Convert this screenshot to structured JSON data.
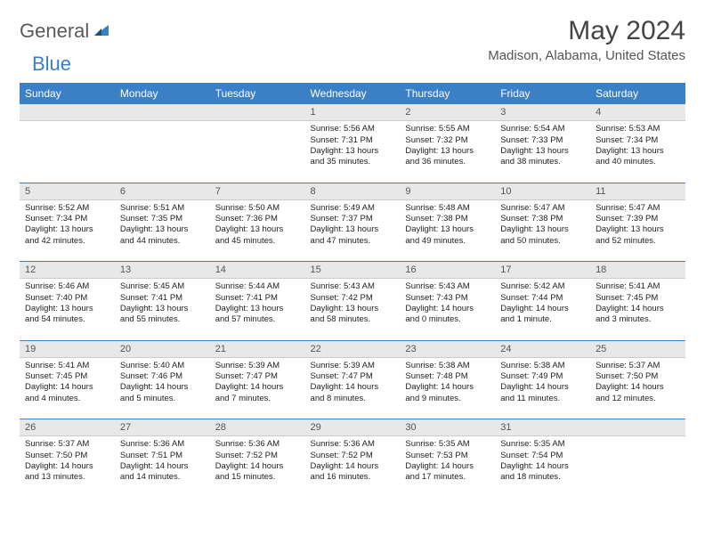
{
  "logo": {
    "general": "General",
    "blue": "Blue"
  },
  "title": "May 2024",
  "location": "Madison, Alabama, United States",
  "colors": {
    "header_bg": "#3b7fc4",
    "header_text": "#ffffff",
    "daynum_bg": "#e8e8e8",
    "body_bg": "#ffffff",
    "text": "#222222",
    "sep": "#3b7fc4"
  },
  "day_names": [
    "Sunday",
    "Monday",
    "Tuesday",
    "Wednesday",
    "Thursday",
    "Friday",
    "Saturday"
  ],
  "weeks": [
    [
      {
        "n": "",
        "sunrise": "",
        "sunset": "",
        "daylight": ""
      },
      {
        "n": "",
        "sunrise": "",
        "sunset": "",
        "daylight": ""
      },
      {
        "n": "",
        "sunrise": "",
        "sunset": "",
        "daylight": ""
      },
      {
        "n": "1",
        "sunrise": "Sunrise: 5:56 AM",
        "sunset": "Sunset: 7:31 PM",
        "daylight": "Daylight: 13 hours and 35 minutes."
      },
      {
        "n": "2",
        "sunrise": "Sunrise: 5:55 AM",
        "sunset": "Sunset: 7:32 PM",
        "daylight": "Daylight: 13 hours and 36 minutes."
      },
      {
        "n": "3",
        "sunrise": "Sunrise: 5:54 AM",
        "sunset": "Sunset: 7:33 PM",
        "daylight": "Daylight: 13 hours and 38 minutes."
      },
      {
        "n": "4",
        "sunrise": "Sunrise: 5:53 AM",
        "sunset": "Sunset: 7:34 PM",
        "daylight": "Daylight: 13 hours and 40 minutes."
      }
    ],
    [
      {
        "n": "5",
        "sunrise": "Sunrise: 5:52 AM",
        "sunset": "Sunset: 7:34 PM",
        "daylight": "Daylight: 13 hours and 42 minutes."
      },
      {
        "n": "6",
        "sunrise": "Sunrise: 5:51 AM",
        "sunset": "Sunset: 7:35 PM",
        "daylight": "Daylight: 13 hours and 44 minutes."
      },
      {
        "n": "7",
        "sunrise": "Sunrise: 5:50 AM",
        "sunset": "Sunset: 7:36 PM",
        "daylight": "Daylight: 13 hours and 45 minutes."
      },
      {
        "n": "8",
        "sunrise": "Sunrise: 5:49 AM",
        "sunset": "Sunset: 7:37 PM",
        "daylight": "Daylight: 13 hours and 47 minutes."
      },
      {
        "n": "9",
        "sunrise": "Sunrise: 5:48 AM",
        "sunset": "Sunset: 7:38 PM",
        "daylight": "Daylight: 13 hours and 49 minutes."
      },
      {
        "n": "10",
        "sunrise": "Sunrise: 5:47 AM",
        "sunset": "Sunset: 7:38 PM",
        "daylight": "Daylight: 13 hours and 50 minutes."
      },
      {
        "n": "11",
        "sunrise": "Sunrise: 5:47 AM",
        "sunset": "Sunset: 7:39 PM",
        "daylight": "Daylight: 13 hours and 52 minutes."
      }
    ],
    [
      {
        "n": "12",
        "sunrise": "Sunrise: 5:46 AM",
        "sunset": "Sunset: 7:40 PM",
        "daylight": "Daylight: 13 hours and 54 minutes."
      },
      {
        "n": "13",
        "sunrise": "Sunrise: 5:45 AM",
        "sunset": "Sunset: 7:41 PM",
        "daylight": "Daylight: 13 hours and 55 minutes."
      },
      {
        "n": "14",
        "sunrise": "Sunrise: 5:44 AM",
        "sunset": "Sunset: 7:41 PM",
        "daylight": "Daylight: 13 hours and 57 minutes."
      },
      {
        "n": "15",
        "sunrise": "Sunrise: 5:43 AM",
        "sunset": "Sunset: 7:42 PM",
        "daylight": "Daylight: 13 hours and 58 minutes."
      },
      {
        "n": "16",
        "sunrise": "Sunrise: 5:43 AM",
        "sunset": "Sunset: 7:43 PM",
        "daylight": "Daylight: 14 hours and 0 minutes."
      },
      {
        "n": "17",
        "sunrise": "Sunrise: 5:42 AM",
        "sunset": "Sunset: 7:44 PM",
        "daylight": "Daylight: 14 hours and 1 minute."
      },
      {
        "n": "18",
        "sunrise": "Sunrise: 5:41 AM",
        "sunset": "Sunset: 7:45 PM",
        "daylight": "Daylight: 14 hours and 3 minutes."
      }
    ],
    [
      {
        "n": "19",
        "sunrise": "Sunrise: 5:41 AM",
        "sunset": "Sunset: 7:45 PM",
        "daylight": "Daylight: 14 hours and 4 minutes."
      },
      {
        "n": "20",
        "sunrise": "Sunrise: 5:40 AM",
        "sunset": "Sunset: 7:46 PM",
        "daylight": "Daylight: 14 hours and 5 minutes."
      },
      {
        "n": "21",
        "sunrise": "Sunrise: 5:39 AM",
        "sunset": "Sunset: 7:47 PM",
        "daylight": "Daylight: 14 hours and 7 minutes."
      },
      {
        "n": "22",
        "sunrise": "Sunrise: 5:39 AM",
        "sunset": "Sunset: 7:47 PM",
        "daylight": "Daylight: 14 hours and 8 minutes."
      },
      {
        "n": "23",
        "sunrise": "Sunrise: 5:38 AM",
        "sunset": "Sunset: 7:48 PM",
        "daylight": "Daylight: 14 hours and 9 minutes."
      },
      {
        "n": "24",
        "sunrise": "Sunrise: 5:38 AM",
        "sunset": "Sunset: 7:49 PM",
        "daylight": "Daylight: 14 hours and 11 minutes."
      },
      {
        "n": "25",
        "sunrise": "Sunrise: 5:37 AM",
        "sunset": "Sunset: 7:50 PM",
        "daylight": "Daylight: 14 hours and 12 minutes."
      }
    ],
    [
      {
        "n": "26",
        "sunrise": "Sunrise: 5:37 AM",
        "sunset": "Sunset: 7:50 PM",
        "daylight": "Daylight: 14 hours and 13 minutes."
      },
      {
        "n": "27",
        "sunrise": "Sunrise: 5:36 AM",
        "sunset": "Sunset: 7:51 PM",
        "daylight": "Daylight: 14 hours and 14 minutes."
      },
      {
        "n": "28",
        "sunrise": "Sunrise: 5:36 AM",
        "sunset": "Sunset: 7:52 PM",
        "daylight": "Daylight: 14 hours and 15 minutes."
      },
      {
        "n": "29",
        "sunrise": "Sunrise: 5:36 AM",
        "sunset": "Sunset: 7:52 PM",
        "daylight": "Daylight: 14 hours and 16 minutes."
      },
      {
        "n": "30",
        "sunrise": "Sunrise: 5:35 AM",
        "sunset": "Sunset: 7:53 PM",
        "daylight": "Daylight: 14 hours and 17 minutes."
      },
      {
        "n": "31",
        "sunrise": "Sunrise: 5:35 AM",
        "sunset": "Sunset: 7:54 PM",
        "daylight": "Daylight: 14 hours and 18 minutes."
      },
      {
        "n": "",
        "sunrise": "",
        "sunset": "",
        "daylight": ""
      }
    ]
  ]
}
